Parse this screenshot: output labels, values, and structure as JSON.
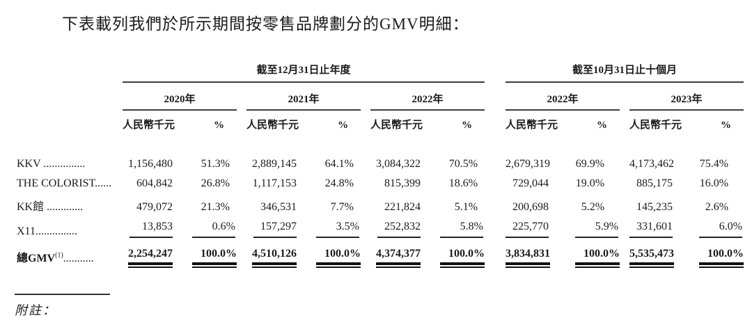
{
  "page": {
    "title": "下表載列我們於所示期間按零售品牌劃分的GMV明細：",
    "notes_label": "附註："
  },
  "table": {
    "sections": [
      {
        "title": "截至12月31日止年度",
        "years": [
          "2020年",
          "2021年",
          "2022年"
        ]
      },
      {
        "title": "截至10月31日止十個月",
        "years": [
          "2022年",
          "2023年"
        ]
      }
    ],
    "col_headers": {
      "amount": "人民幣千元",
      "percent": "%"
    },
    "rows": [
      {
        "label": "KKV",
        "dots": " ...............",
        "values": [
          "1,156,480",
          "51.3%",
          "2,889,145",
          "64.1%",
          "3,084,322",
          "70.5%",
          "2,679,319",
          "69.9%",
          "4,173,462",
          "75.4%"
        ]
      },
      {
        "label": "THE COLORIST",
        "dots": "......",
        "values": [
          "604,842",
          "26.8%",
          "1,117,153",
          "24.8%",
          "815,399",
          "18.6%",
          "729,044",
          "19.0%",
          "885,175",
          "16.0%"
        ]
      },
      {
        "label": "KK館",
        "dots": " .............",
        "values": [
          "479,072",
          "21.3%",
          "346,531",
          "7.7%",
          "221,824",
          "5.1%",
          "200,698",
          "5.2%",
          "145,235",
          "2.6%"
        ]
      },
      {
        "label": "X11",
        "dots": "...............",
        "values": [
          "13,853",
          "0.6%",
          "157,297",
          "3.5%",
          "252,832",
          "5.8%",
          "225,770",
          "5.9%",
          "331,601",
          "6.0%"
        ]
      }
    ],
    "total": {
      "label": "總GMV",
      "sup": "(1)",
      "dots": "...........",
      "values": [
        "2,254,247",
        "100.0%",
        "4,510,126",
        "100.0%",
        "4,374,377",
        "100.0%",
        "3,834,831",
        "100.0%",
        "5,535,473",
        "100.0%"
      ]
    }
  }
}
